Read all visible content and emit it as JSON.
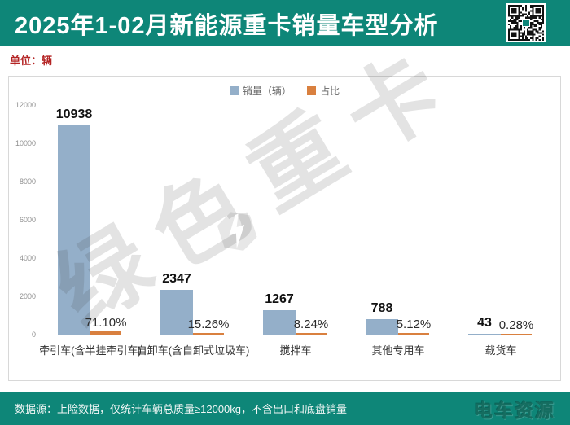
{
  "header": {
    "title": "2025年1-02月新能源重卡销量车型分析"
  },
  "unit_label": "单位：辆",
  "watermark": "绿色重卡",
  "chart_data": {
    "type": "bar",
    "categories": [
      "牵引车(含半挂牵引车)",
      "自卸车(含自卸式垃圾车)",
      "搅拌车",
      "其他专用车",
      "载货车"
    ],
    "series": [
      {
        "name": "销量（辆）",
        "values": [
          10938,
          2347,
          1267,
          788,
          43
        ],
        "color": "#94afc9"
      },
      {
        "name": "占比",
        "values": [
          71.1,
          15.26,
          8.24,
          5.12,
          0.28
        ],
        "unit": "%",
        "color": "#d9803f"
      }
    ],
    "value_labels": [
      "10938",
      "2347",
      "1267",
      "788",
      "43"
    ],
    "pct_labels": [
      "71.10%",
      "15.26%",
      "8.24%",
      "5.12%",
      "0.28%"
    ],
    "yticks": [
      0,
      2000,
      4000,
      6000,
      8000,
      10000,
      12000
    ],
    "ylim": [
      0,
      12000
    ],
    "legend_position": "top",
    "grid": false
  },
  "footer": {
    "source": "数据源：上险数据，仅统计车辆总质量≥12000kg，不含出口和底盘销量",
    "logo": "电车资源"
  }
}
